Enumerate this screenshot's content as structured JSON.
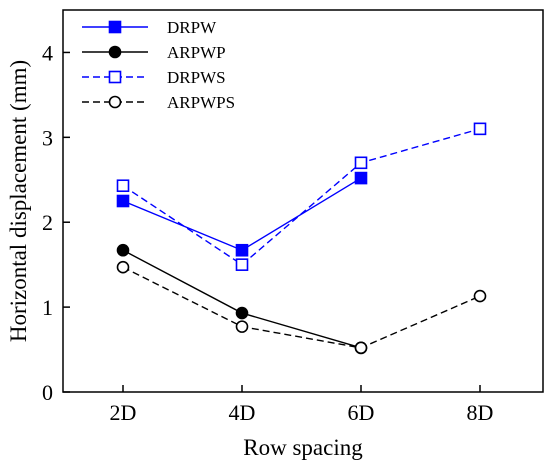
{
  "chart_data": {
    "type": "line",
    "categories": [
      "2D",
      "4D",
      "6D",
      "8D"
    ],
    "xlabel": "Row spacing",
    "ylabel": "Horizontal displacement (mm)",
    "ylim": [
      0,
      4.5
    ],
    "yticks": [
      0,
      1,
      2,
      3,
      4
    ],
    "grid": false,
    "legend_position": "top-left",
    "series": [
      {
        "name": "DRPW",
        "values": [
          2.25,
          1.67,
          2.52,
          null
        ],
        "color": "#0000ff",
        "line": "solid",
        "marker": "square-filled"
      },
      {
        "name": "ARPWP",
        "values": [
          1.67,
          0.93,
          0.52,
          null
        ],
        "color": "#000000",
        "line": "solid",
        "marker": "circle-filled"
      },
      {
        "name": "DRPWS",
        "values": [
          2.43,
          1.5,
          2.7,
          3.1
        ],
        "color": "#0000ff",
        "line": "dashed",
        "marker": "square-open"
      },
      {
        "name": "ARPWPS",
        "values": [
          1.47,
          0.77,
          0.52,
          1.13
        ],
        "color": "#000000",
        "line": "dashed",
        "marker": "circle-open"
      }
    ]
  }
}
